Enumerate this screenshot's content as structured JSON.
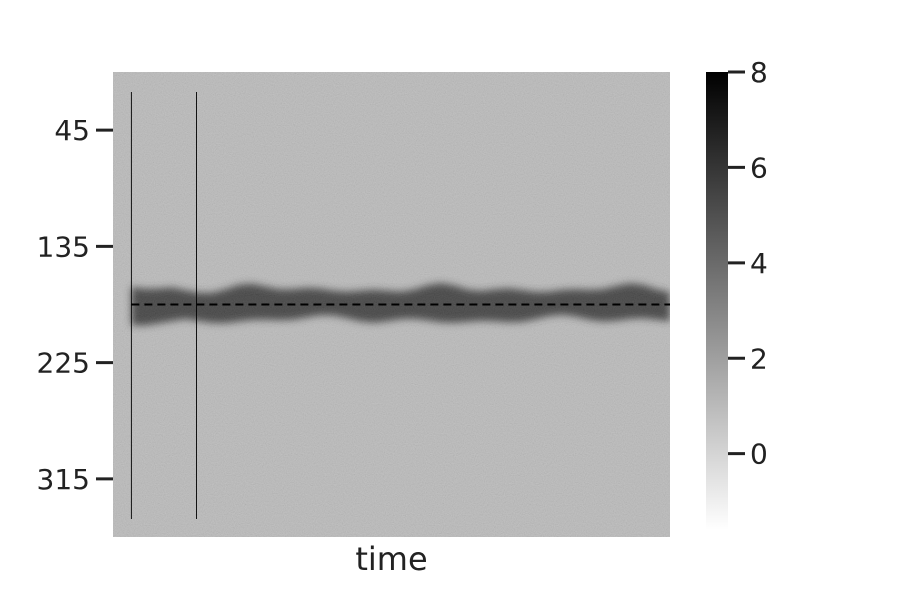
{
  "chart_data": {
    "type": "heatmap",
    "title": "",
    "xlabel": "time",
    "ylabel": "",
    "x_tick_labels": [],
    "y_ticks": [
      {
        "value": 45,
        "label": "45"
      },
      {
        "value": 135,
        "label": "135"
      },
      {
        "value": 225,
        "label": "225"
      },
      {
        "value": 315,
        "label": "315"
      }
    ],
    "y_range": [
      0,
      360
    ],
    "colorbar": {
      "range": [
        -1.6,
        8
      ],
      "ticks": [
        {
          "value": 0,
          "label": "0"
        },
        {
          "value": 2,
          "label": "2"
        },
        {
          "value": 4,
          "label": "4"
        },
        {
          "value": 6,
          "label": "6"
        },
        {
          "value": 8,
          "label": "8"
        }
      ],
      "cmap_low": "#ffffff",
      "cmap_high": "#000000"
    },
    "background_level": 1.0,
    "band": {
      "center": 180,
      "peak_level": 6.2,
      "half_width": 12
    },
    "reference_line": {
      "value": 180,
      "style": "dashed",
      "color": "#000000"
    },
    "vertical_markers_fraction": [
      0.033,
      0.15
    ],
    "grid": false
  }
}
